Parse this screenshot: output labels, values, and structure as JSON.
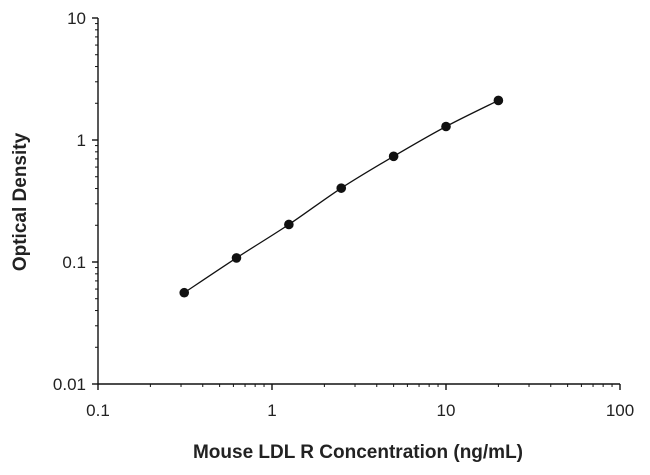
{
  "chart_data": {
    "type": "scatter",
    "title": "",
    "xlabel": "Mouse LDL R Concentration (ng/mL)",
    "ylabel": "Optical Density",
    "xscale": "log",
    "yscale": "log",
    "xlim": [
      0.1,
      100
    ],
    "ylim": [
      0.01,
      10
    ],
    "x_ticks": [
      0.1,
      1,
      10,
      100
    ],
    "x_tick_labels": [
      "0.1",
      "1",
      "10",
      "100"
    ],
    "y_ticks": [
      0.01,
      0.1,
      1,
      10
    ],
    "y_tick_labels": [
      "0.01",
      "0.1",
      "1",
      "10"
    ],
    "grid": false,
    "legend": "none",
    "marker_color": "#111111",
    "line_color": "#111111",
    "series": [
      {
        "x": [
          0.313,
          0.625,
          1.25,
          2.5,
          5,
          10,
          20
        ],
        "y": [
          0.056,
          0.108,
          0.203,
          0.403,
          0.735,
          1.29,
          2.11
        ],
        "fit_line": true
      }
    ]
  }
}
